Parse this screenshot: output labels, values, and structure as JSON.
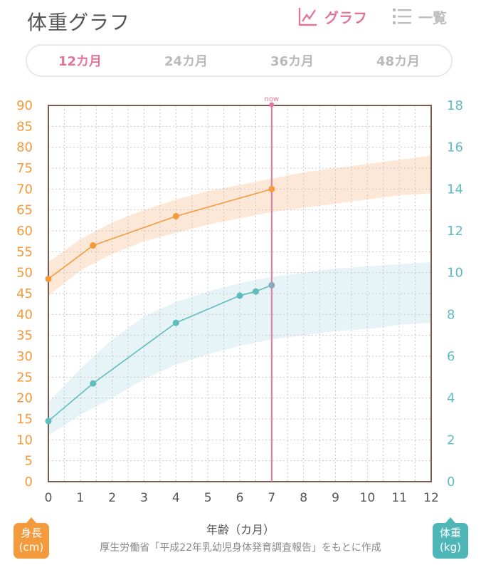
{
  "header": {
    "title": "体重グラフ",
    "tab_graph": "グラフ",
    "tab_list": "一覧"
  },
  "period_tabs": [
    "12カ月",
    "24カ月",
    "36カ月",
    "48カ月"
  ],
  "active_period": 0,
  "colors": {
    "height": "#f39a3c",
    "weight": "#5fbcbc",
    "now": "#e2769a",
    "frame": "#7a5a4d"
  },
  "chart_data": {
    "type": "line",
    "now_label": "now",
    "x": {
      "label": "年齢（カ月）",
      "min": 0,
      "max": 12,
      "ticks": [
        0,
        1,
        2,
        3,
        4,
        5,
        6,
        7,
        8,
        9,
        10,
        11,
        12
      ]
    },
    "y_left": {
      "label": "身長(cm)",
      "min": 0,
      "max": 90,
      "ticks": [
        0,
        5,
        10,
        15,
        20,
        25,
        30,
        35,
        40,
        45,
        50,
        55,
        60,
        65,
        70,
        75,
        80,
        85,
        90
      ]
    },
    "y_right": {
      "label": "体重(kg)",
      "min": 0,
      "max": 18,
      "ticks": [
        0,
        2,
        4,
        6,
        8,
        10,
        12,
        14,
        16,
        18
      ]
    },
    "now_x": 7,
    "grid": true,
    "series": [
      {
        "name": "身長",
        "axis": "left",
        "points": [
          [
            0,
            48.5
          ],
          [
            1.4,
            56.5
          ],
          [
            4,
            63.5
          ],
          [
            7,
            70
          ]
        ]
      },
      {
        "name": "体重",
        "axis": "right",
        "points": [
          [
            0,
            2.9
          ],
          [
            1.4,
            4.7
          ],
          [
            4,
            7.6
          ],
          [
            6,
            8.9
          ],
          [
            6.5,
            9.1
          ],
          [
            7,
            9.4
          ]
        ]
      }
    ],
    "bands": [
      {
        "axis": "left",
        "color": "#fde8d8",
        "lower": [
          [
            0,
            44.5
          ],
          [
            1,
            50.5
          ],
          [
            2,
            54.5
          ],
          [
            3,
            57.5
          ],
          [
            4,
            59.5
          ],
          [
            5,
            61.5
          ],
          [
            6,
            63
          ],
          [
            7,
            64.5
          ],
          [
            8,
            65.5
          ],
          [
            9,
            66.5
          ],
          [
            10,
            67.5
          ],
          [
            11,
            68.5
          ],
          [
            12,
            69
          ]
        ],
        "upper": [
          [
            0,
            52.5
          ],
          [
            1,
            58
          ],
          [
            2,
            62
          ],
          [
            3,
            65
          ],
          [
            4,
            67.5
          ],
          [
            5,
            69.5
          ],
          [
            6,
            71
          ],
          [
            7,
            72.5
          ],
          [
            8,
            74
          ],
          [
            9,
            75
          ],
          [
            10,
            76
          ],
          [
            11,
            77
          ],
          [
            12,
            78
          ]
        ]
      },
      {
        "axis": "right",
        "color": "#e7f4f7",
        "lower": [
          [
            0,
            2.2
          ],
          [
            1,
            3.2
          ],
          [
            2,
            4
          ],
          [
            3,
            4.9
          ],
          [
            4,
            5.6
          ],
          [
            5,
            6.1
          ],
          [
            6,
            6.5
          ],
          [
            7,
            6.8
          ],
          [
            8,
            7
          ],
          [
            9,
            7.2
          ],
          [
            10,
            7.3
          ],
          [
            11,
            7.5
          ],
          [
            12,
            7.6
          ]
        ],
        "upper": [
          [
            0,
            3.8
          ],
          [
            1,
            5.4
          ],
          [
            2,
            6.8
          ],
          [
            3,
            7.9
          ],
          [
            4,
            8.6
          ],
          [
            5,
            9.1
          ],
          [
            6,
            9.5
          ],
          [
            7,
            9.8
          ],
          [
            8,
            10
          ],
          [
            9,
            10.2
          ],
          [
            10,
            10.3
          ],
          [
            11,
            10.4
          ],
          [
            12,
            10.5
          ]
        ]
      }
    ]
  },
  "footer": {
    "x_axis_label": "年齢（カ月）",
    "source": "厚生労働省「平成22年乳幼児身体発育調査報告」をもとに作成",
    "left_badge_line1": "身長",
    "left_badge_line2": "(cm)",
    "right_badge_line1": "体重",
    "right_badge_line2": "(kg)"
  }
}
